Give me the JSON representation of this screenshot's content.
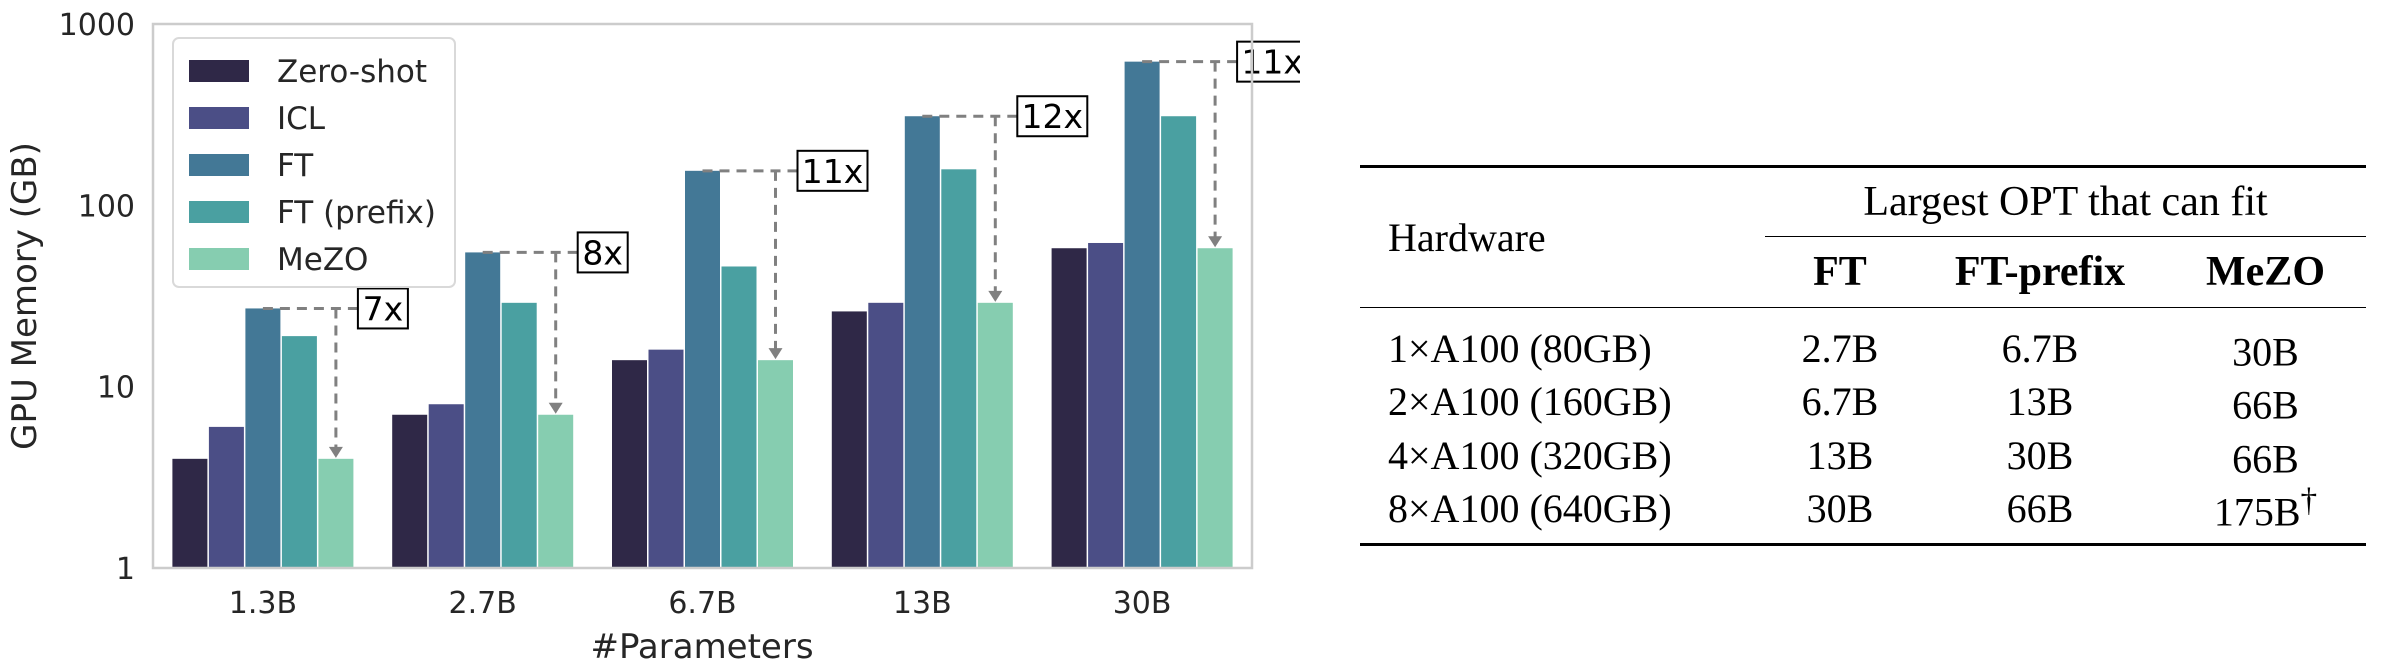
{
  "chart_data": [
    {
      "type": "bar",
      "yscale": "log",
      "ylim": [
        1,
        1000
      ],
      "yticks": [
        "1",
        "10",
        "100",
        "1000"
      ],
      "ylabel": "GPU Memory (GB)",
      "xlabel": "#Parameters",
      "categories": [
        "1.3B",
        "2.7B",
        "6.7B",
        "13B",
        "30B"
      ],
      "legend_position": "top-left",
      "grid": false,
      "series": [
        {
          "name": "Zero-shot",
          "color": "#2f2847",
          "values": [
            4,
            7,
            14,
            26,
            58
          ]
        },
        {
          "name": "ICL",
          "color": "#4b4e86",
          "values": [
            6,
            8,
            16,
            29,
            62
          ]
        },
        {
          "name": "FT",
          "color": "#437896",
          "values": [
            27,
            55,
            155,
            310,
            620
          ]
        },
        {
          "name": "FT (prefix)",
          "color": "#4aa0a1",
          "values": [
            19,
            29,
            46,
            158,
            310
          ]
        },
        {
          "name": "MeZO",
          "color": "#86cdb0",
          "values": [
            4,
            7,
            14,
            29,
            58
          ]
        }
      ],
      "annotations": [
        {
          "category": "1.3B",
          "label": "7x"
        },
        {
          "category": "2.7B",
          "label": "8x"
        },
        {
          "category": "6.7B",
          "label": "11x"
        },
        {
          "category": "13B",
          "label": "12x"
        },
        {
          "category": "30B",
          "label": "11x"
        }
      ]
    },
    {
      "type": "table",
      "columns": [
        "Hardware",
        "FT",
        "FT-prefix",
        "MeZO"
      ],
      "group_header": "Largest OPT that can fit",
      "rows": [
        {
          "hardware": "1×A100 (80GB)",
          "ft": "2.7B",
          "ft_prefix": "6.7B",
          "mezo": "30B",
          "mezo_mark": ""
        },
        {
          "hardware": "2×A100 (160GB)",
          "ft": "6.7B",
          "ft_prefix": "13B",
          "mezo": "66B",
          "mezo_mark": ""
        },
        {
          "hardware": "4×A100 (320GB)",
          "ft": "13B",
          "ft_prefix": "30B",
          "mezo": "66B",
          "mezo_mark": ""
        },
        {
          "hardware": "8×A100 (640GB)",
          "ft": "30B",
          "ft_prefix": "66B",
          "mezo": "175B",
          "mezo_mark": "†"
        }
      ]
    }
  ]
}
